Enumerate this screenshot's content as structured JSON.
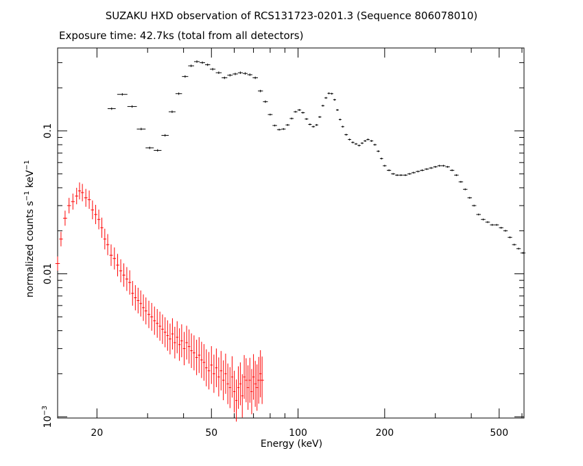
{
  "chart_data": {
    "type": "scatter",
    "title": "SUZAKU HXD observation of RCS131723-0201.3 (Sequence 806078010)",
    "subtitle": "Exposure time: 42.7ks (total from all detectors)",
    "xlabel": "Energy (keV)",
    "ylabel_text": "normalized counts s",
    "ylabel_exp1": "−1",
    "ylabel_mid": " keV",
    "ylabel_exp2": "−1",
    "xscale": "log",
    "yscale": "log",
    "xlim": [
      14.6,
      610
    ],
    "ylim": [
      0.00098,
      0.38
    ],
    "x_ticks": [
      {
        "v": 20,
        "label": "20"
      },
      {
        "v": 50,
        "label": "50"
      },
      {
        "v": 100,
        "label": "100"
      },
      {
        "v": 200,
        "label": "200"
      },
      {
        "v": 500,
        "label": "500"
      }
    ],
    "y_ticks": [
      {
        "v": 0.1,
        "label": "0.1"
      },
      {
        "v": 0.01,
        "label": "0.01"
      },
      {
        "v": 0.001,
        "label": "10",
        "sup": "−3"
      }
    ],
    "series": [
      {
        "color": "#ff0000",
        "points": [
          [
            14.6,
            0.0118
          ],
          [
            15.0,
            0.0175
          ],
          [
            15.5,
            0.0245
          ],
          [
            16.0,
            0.03
          ],
          [
            16.5,
            0.032
          ],
          [
            17.0,
            0.035
          ],
          [
            17.4,
            0.038
          ],
          [
            17.8,
            0.037
          ],
          [
            18.3,
            0.034
          ],
          [
            18.8,
            0.033
          ],
          [
            19.3,
            0.028
          ],
          [
            19.8,
            0.026
          ],
          [
            20.3,
            0.024
          ],
          [
            20.8,
            0.021
          ],
          [
            21.3,
            0.0175
          ],
          [
            21.8,
            0.016
          ],
          [
            22.4,
            0.0135
          ],
          [
            23.0,
            0.0128
          ],
          [
            23.6,
            0.0115
          ],
          [
            24.2,
            0.0105
          ],
          [
            24.8,
            0.0098
          ],
          [
            25.4,
            0.0092
          ],
          [
            26.0,
            0.0087
          ],
          [
            26.6,
            0.0073
          ],
          [
            27.2,
            0.0068
          ],
          [
            27.8,
            0.0065
          ],
          [
            28.4,
            0.0062
          ],
          [
            29.0,
            0.0058
          ],
          [
            29.6,
            0.0055
          ],
          [
            30.3,
            0.0052
          ],
          [
            31.0,
            0.005
          ],
          [
            31.7,
            0.0047
          ],
          [
            32.4,
            0.0045
          ],
          [
            33.1,
            0.0043
          ],
          [
            33.8,
            0.0041
          ],
          [
            34.5,
            0.0039
          ],
          [
            35.2,
            0.0037
          ],
          [
            35.9,
            0.0035
          ],
          [
            36.6,
            0.0038
          ],
          [
            37.3,
            0.0033
          ],
          [
            38.0,
            0.0036
          ],
          [
            38.7,
            0.0032
          ],
          [
            39.4,
            0.0034
          ],
          [
            40.2,
            0.003
          ],
          [
            41.0,
            0.0033
          ],
          [
            41.8,
            0.0031
          ],
          [
            42.6,
            0.0029
          ],
          [
            43.5,
            0.0028
          ],
          [
            44.4,
            0.0026
          ],
          [
            45.3,
            0.0027
          ],
          [
            46.2,
            0.0025
          ],
          [
            47.1,
            0.0024
          ],
          [
            48.0,
            0.0022
          ],
          [
            49.0,
            0.0021
          ],
          [
            50.0,
            0.0023
          ],
          [
            51.0,
            0.002
          ],
          [
            52.0,
            0.0022
          ],
          [
            53.0,
            0.0019
          ],
          [
            54.0,
            0.0021
          ],
          [
            55.0,
            0.0018
          ],
          [
            56.0,
            0.002
          ],
          [
            57.0,
            0.0017
          ],
          [
            58.0,
            0.0016
          ],
          [
            59.0,
            0.0019
          ],
          [
            60.0,
            0.0015
          ],
          [
            61.0,
            0.0013
          ],
          [
            62.0,
            0.0016
          ],
          [
            63.0,
            0.0017
          ],
          [
            64.0,
            0.0014
          ],
          [
            65.0,
            0.0019
          ],
          [
            66.0,
            0.0018
          ],
          [
            67.0,
            0.0016
          ],
          [
            68.0,
            0.0018
          ],
          [
            69.0,
            0.0015
          ],
          [
            70.0,
            0.0019
          ],
          [
            71.0,
            0.0017
          ],
          [
            72.0,
            0.0016
          ],
          [
            73.0,
            0.0018
          ],
          [
            74.0,
            0.002
          ],
          [
            75.0,
            0.0018
          ]
        ]
      },
      {
        "color": "#000000",
        "points": [
          [
            22.5,
            0.143
          ],
          [
            24.5,
            0.18
          ],
          [
            26.5,
            0.148
          ],
          [
            28.5,
            0.103
          ],
          [
            30.5,
            0.076
          ],
          [
            32.5,
            0.073
          ],
          [
            34.5,
            0.093
          ],
          [
            36.5,
            0.136
          ],
          [
            38.5,
            0.182
          ],
          [
            40.5,
            0.24
          ],
          [
            42.5,
            0.285
          ],
          [
            44.5,
            0.305
          ],
          [
            46.5,
            0.3
          ],
          [
            48.5,
            0.29
          ],
          [
            50.5,
            0.27
          ],
          [
            53.0,
            0.255
          ],
          [
            55.5,
            0.235
          ],
          [
            58.0,
            0.245
          ],
          [
            60.5,
            0.25
          ],
          [
            63.0,
            0.255
          ],
          [
            65.5,
            0.252
          ],
          [
            68.0,
            0.247
          ],
          [
            71.0,
            0.235
          ],
          [
            74.0,
            0.19
          ],
          [
            77.0,
            0.16
          ],
          [
            80.0,
            0.13
          ],
          [
            83.0,
            0.109
          ],
          [
            86.0,
            0.102
          ],
          [
            89.0,
            0.103
          ],
          [
            92.0,
            0.11
          ],
          [
            95.0,
            0.122
          ],
          [
            98.0,
            0.136
          ],
          [
            101.0,
            0.14
          ],
          [
            104.0,
            0.134
          ],
          [
            107.0,
            0.121
          ],
          [
            110.0,
            0.111
          ],
          [
            113.0,
            0.107
          ],
          [
            116.0,
            0.11
          ],
          [
            119.0,
            0.125
          ],
          [
            122.0,
            0.15
          ],
          [
            125.0,
            0.17
          ],
          [
            128.0,
            0.183
          ],
          [
            131.0,
            0.182
          ],
          [
            134.0,
            0.165
          ],
          [
            137.0,
            0.14
          ],
          [
            140.0,
            0.12
          ],
          [
            143.0,
            0.107
          ],
          [
            147.0,
            0.094
          ],
          [
            151.0,
            0.087
          ],
          [
            155.0,
            0.083
          ],
          [
            159.0,
            0.081
          ],
          [
            163.0,
            0.079
          ],
          [
            167.0,
            0.082
          ],
          [
            171.0,
            0.085
          ],
          [
            175.0,
            0.087
          ],
          [
            180.0,
            0.085
          ],
          [
            185.0,
            0.08
          ],
          [
            190.0,
            0.072
          ],
          [
            195.0,
            0.064
          ],
          [
            200.0,
            0.057
          ],
          [
            207.0,
            0.053
          ],
          [
            214.0,
            0.05
          ],
          [
            221.0,
            0.049
          ],
          [
            228.0,
            0.049
          ],
          [
            236.0,
            0.049
          ],
          [
            244.0,
            0.05
          ],
          [
            252.0,
            0.051
          ],
          [
            261.0,
            0.052
          ],
          [
            270.0,
            0.053
          ],
          [
            280.0,
            0.054
          ],
          [
            290.0,
            0.055
          ],
          [
            300.0,
            0.056
          ],
          [
            310.0,
            0.057
          ],
          [
            320.0,
            0.057
          ],
          [
            331.0,
            0.056
          ],
          [
            343.0,
            0.053
          ],
          [
            355.0,
            0.049
          ],
          [
            368.0,
            0.044
          ],
          [
            381.0,
            0.039
          ],
          [
            395.0,
            0.034
          ],
          [
            409.0,
            0.03
          ],
          [
            424.0,
            0.026
          ],
          [
            440.0,
            0.024
          ],
          [
            456.0,
            0.023
          ],
          [
            473.0,
            0.022
          ],
          [
            490.0,
            0.022
          ],
          [
            508.0,
            0.021
          ],
          [
            526.0,
            0.02
          ],
          [
            545.0,
            0.018
          ],
          [
            564.0,
            0.016
          ],
          [
            584.0,
            0.015
          ],
          [
            605.0,
            0.014
          ]
        ]
      }
    ]
  }
}
